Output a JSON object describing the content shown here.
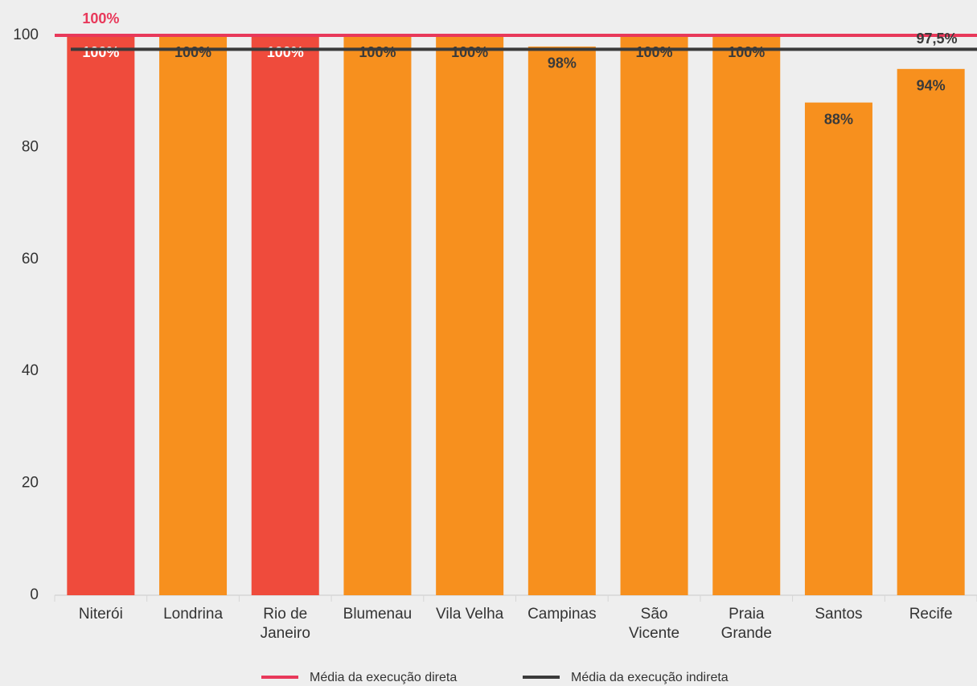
{
  "chart_data": {
    "type": "bar",
    "categories": [
      "Niterói",
      "Londrina",
      "Rio de Janeiro",
      "Blumenau",
      "Vila Velha",
      "Campinas",
      "São Vicente",
      "Praia Grande",
      "Santos",
      "Recife"
    ],
    "values": [
      100,
      100,
      100,
      100,
      100,
      98,
      100,
      100,
      88,
      94
    ],
    "value_labels": [
      "100%",
      "100%",
      "100%",
      "100%",
      "100%",
      "98%",
      "100%",
      "100%",
      "88%",
      "94%"
    ],
    "colors": [
      "#ef4b3c",
      "#f7901e",
      "#ef4b3c",
      "#f7901e",
      "#f7901e",
      "#f7901e",
      "#f7901e",
      "#f7901e",
      "#f7901e",
      "#f7901e"
    ],
    "value_label_colors": [
      "#ffffff",
      "#3a3a3a",
      "#ffffff",
      "#3a3a3a",
      "#3a3a3a",
      "#3a3a3a",
      "#3a3a3a",
      "#3a3a3a",
      "#3a3a3a",
      "#3a3a3a"
    ],
    "lines": [
      {
        "name": "Média da execução direta",
        "color": "#e8385a",
        "value": 100,
        "value_label": "100%"
      },
      {
        "name": "Média da execução indireta",
        "color": "#3a3a3a",
        "value": 97.5,
        "value_label": "97,5%"
      }
    ],
    "ylim": [
      0,
      100
    ],
    "yticks": [
      0,
      20,
      40,
      60,
      80,
      100
    ],
    "grid": false
  }
}
